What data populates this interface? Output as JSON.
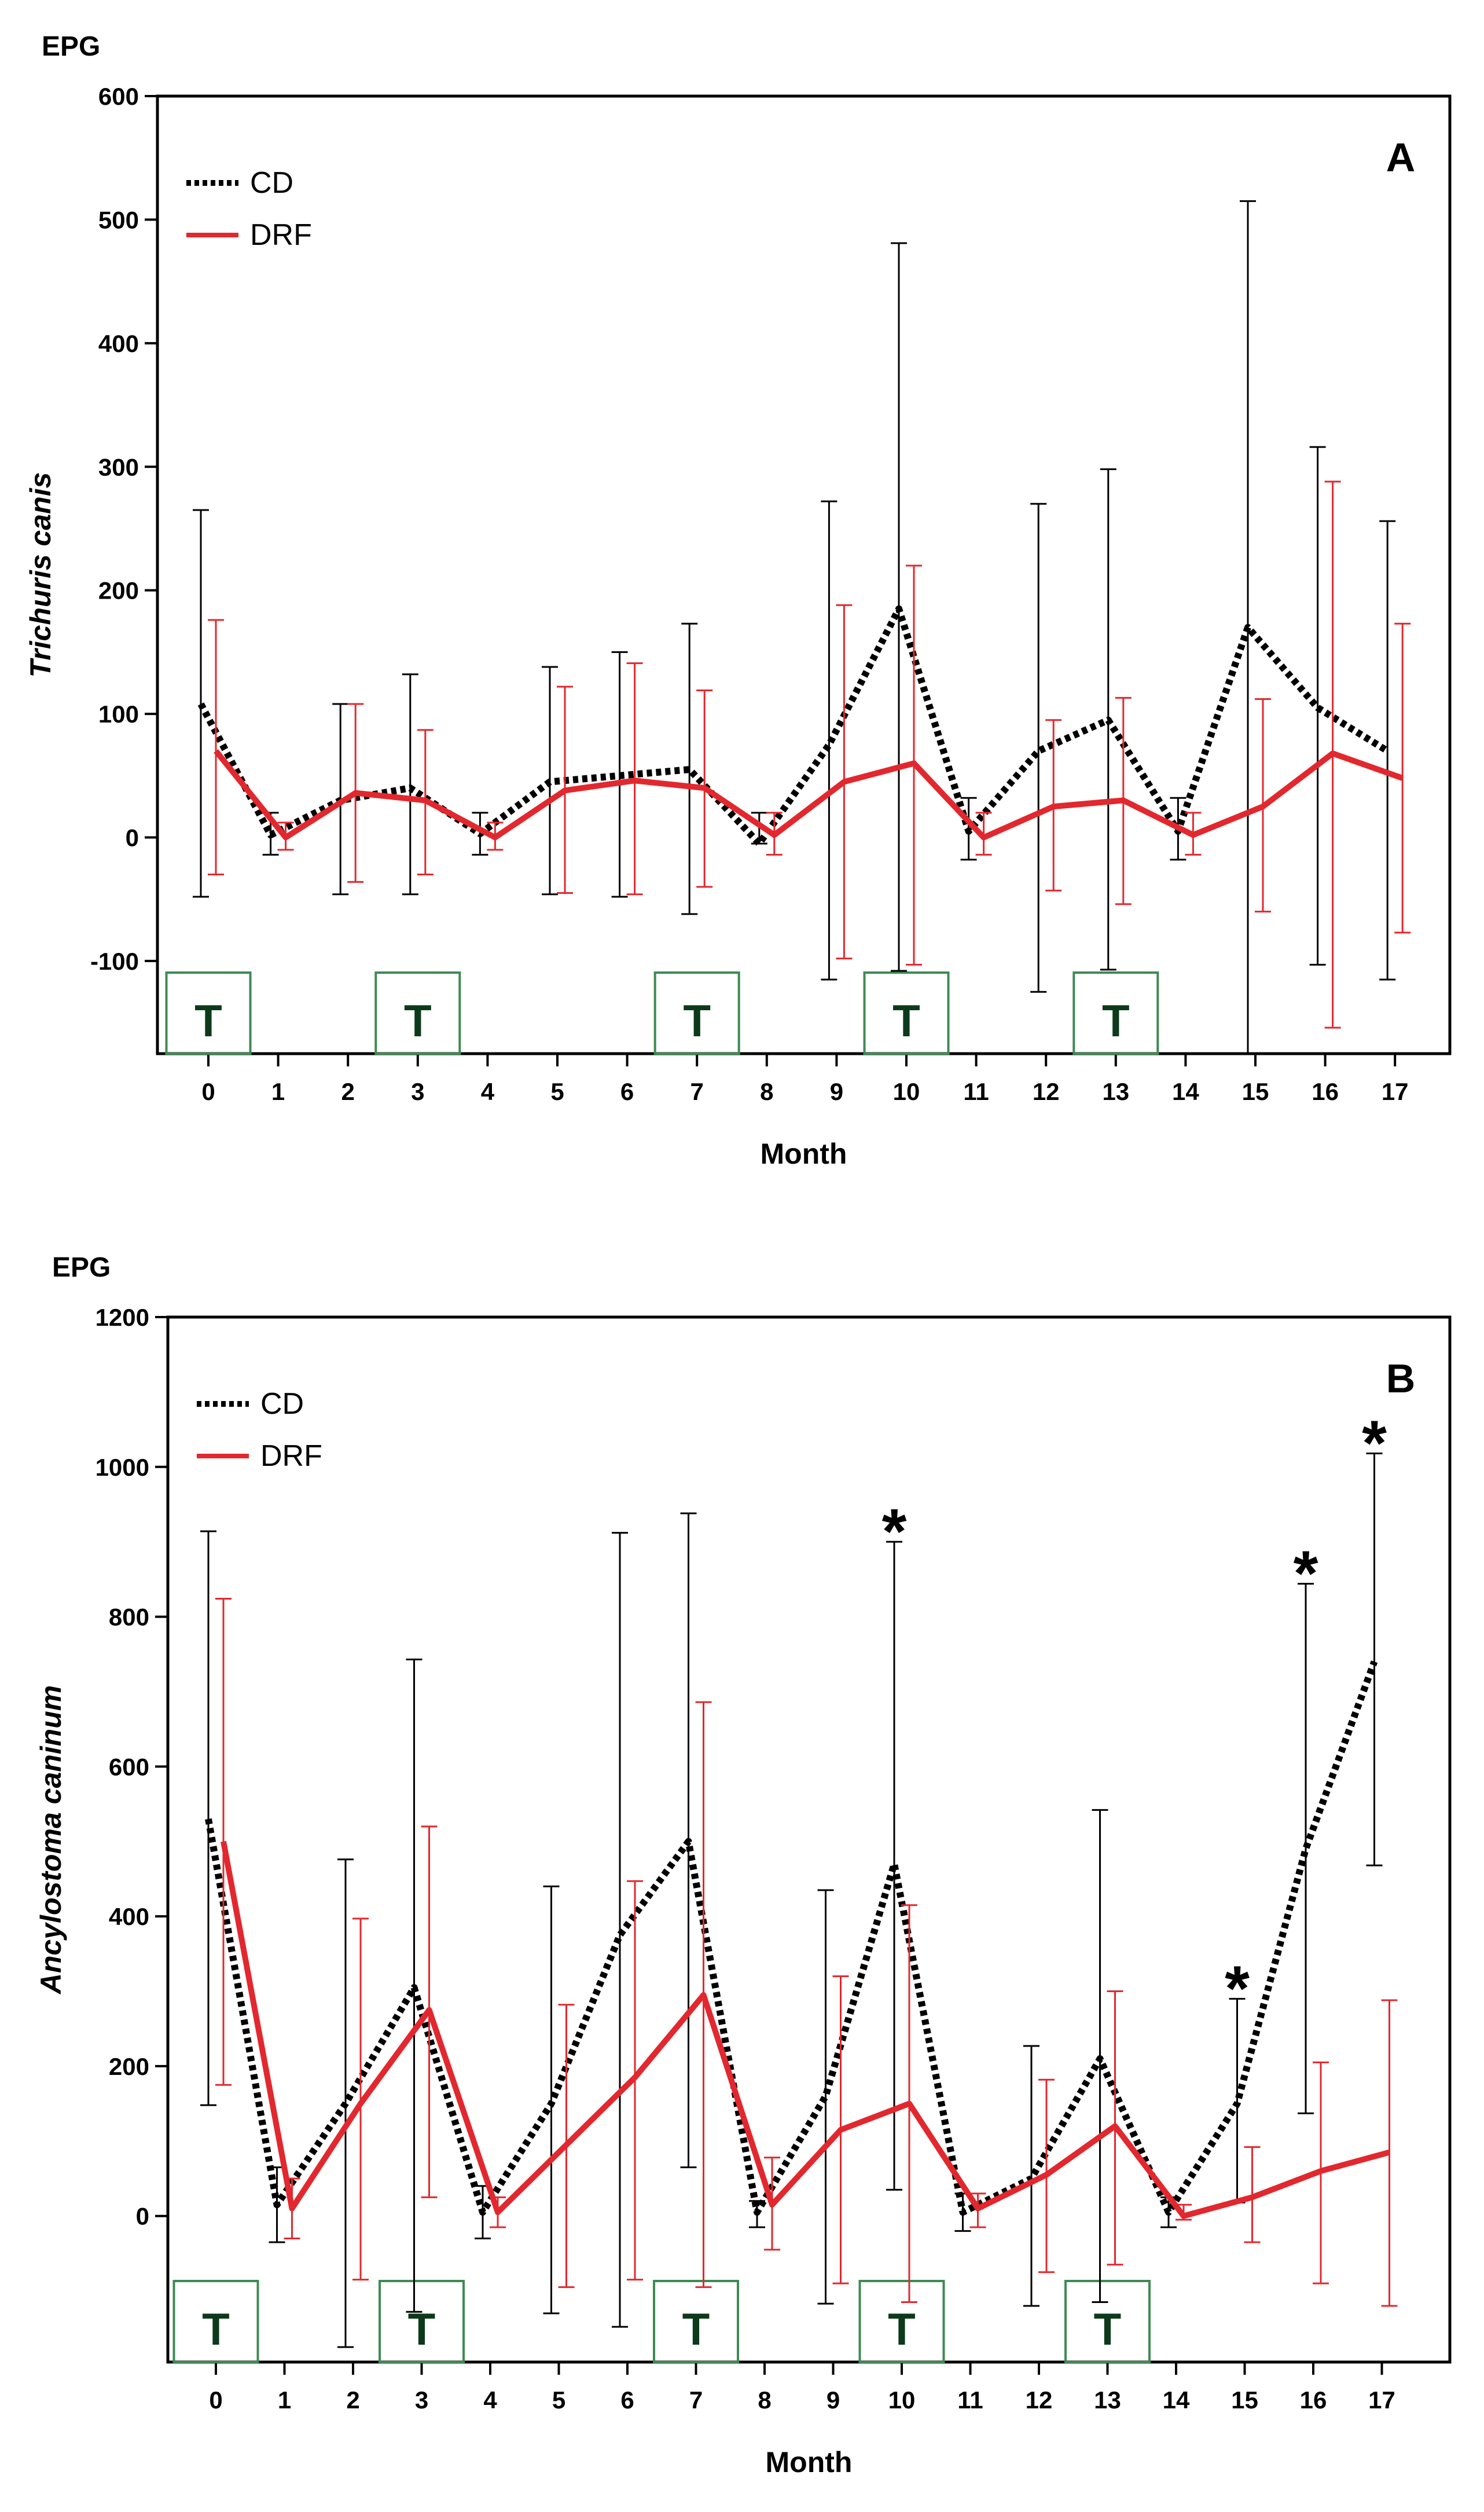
{
  "chart_data": [
    {
      "type": "line",
      "panel_label": "A",
      "ytitle": "EPG",
      "ylabel": "Trichuris canis",
      "xlabel": "Month",
      "ylim": [
        -175,
        600
      ],
      "yticks": [
        -100,
        0,
        100,
        200,
        300,
        400,
        500,
        600
      ],
      "x": [
        0,
        1,
        2,
        3,
        4,
        5,
        6,
        7,
        8,
        9,
        10,
        11,
        12,
        13,
        14,
        15,
        16,
        17
      ],
      "legend_position": "top-left",
      "series": [
        {
          "name": "CD",
          "color": "#000000",
          "style": "dotted",
          "values": [
            108,
            2,
            30,
            40,
            3,
            45,
            50,
            55,
            -5,
            75,
            185,
            5,
            70,
            95,
            5,
            170,
            105,
            70
          ],
          "err_low": [
            -48,
            -14,
            -46,
            -46,
            -14,
            -46,
            -48,
            -62,
            -5,
            -115,
            -108,
            -18,
            -125,
            -107,
            -18,
            -175,
            -103,
            -115
          ],
          "err_high": [
            265,
            20,
            108,
            132,
            20,
            138,
            150,
            173,
            20,
            272,
            481,
            32,
            270,
            298,
            32,
            515,
            316,
            256
          ]
        },
        {
          "name": "DRF",
          "color": "#e2282e",
          "style": "solid",
          "values": [
            70,
            0,
            36,
            30,
            0,
            38,
            46,
            40,
            2,
            45,
            60,
            0,
            25,
            30,
            2,
            25,
            68,
            48
          ],
          "err_low": [
            -30,
            -10,
            -36,
            -30,
            -10,
            -45,
            -46,
            -40,
            -14,
            -98,
            -103,
            -14,
            -43,
            -54,
            -14,
            -60,
            -154,
            -77
          ],
          "err_high": [
            176,
            12,
            108,
            87,
            12,
            122,
            141,
            119,
            20,
            188,
            220,
            20,
            95,
            113,
            20,
            112,
            288,
            173
          ]
        }
      ],
      "treatments": {
        "label": "T",
        "months": [
          0,
          3,
          7,
          10,
          13
        ]
      },
      "significance": {
        "symbol": "*",
        "months": []
      }
    },
    {
      "type": "line",
      "panel_label": "B",
      "ytitle": "EPG",
      "ylabel": "Ancylostoma caninum",
      "xlabel": "Month",
      "ylim": [
        -195,
        1200
      ],
      "yticks": [
        0,
        200,
        400,
        600,
        800,
        1000,
        1200
      ],
      "x": [
        0,
        1,
        2,
        3,
        4,
        5,
        6,
        7,
        8,
        9,
        10,
        11,
        12,
        13,
        14,
        15,
        16,
        17
      ],
      "legend_position": "top-left",
      "series": [
        {
          "name": "CD",
          "color": "#000000",
          "style": "dotted",
          "values": [
            530,
            15,
            150,
            305,
            5,
            150,
            375,
            500,
            5,
            160,
            470,
            5,
            50,
            210,
            5,
            150,
            490,
            740
          ],
          "err_low": [
            148,
            -35,
            -175,
            -128,
            -30,
            -130,
            -148,
            65,
            -15,
            -117,
            35,
            -20,
            -120,
            -115,
            -15,
            18,
            137,
            468
          ],
          "err_high": [
            914,
            65,
            476,
            743,
            40,
            440,
            912,
            938,
            20,
            435,
            900,
            30,
            227,
            542,
            25,
            290,
            844,
            1018
          ]
        },
        {
          "name": "DRF",
          "color": "#e2282e",
          "style": "solid",
          "values": [
            500,
            10,
            150,
            275,
            5,
            95,
            185,
            295,
            15,
            115,
            150,
            10,
            55,
            120,
            0,
            25,
            60,
            85
          ],
          "err_low": [
            175,
            -30,
            -85,
            25,
            -15,
            -95,
            -85,
            -95,
            -45,
            -90,
            -115,
            -15,
            -75,
            -65,
            -5,
            -35,
            -90,
            -120
          ],
          "err_high": [
            824,
            50,
            397,
            520,
            25,
            282,
            447,
            686,
            78,
            320,
            415,
            30,
            182,
            300,
            15,
            92,
            205,
            288
          ]
        }
      ],
      "treatments": {
        "label": "T",
        "months": [
          0,
          3,
          7,
          10,
          13
        ]
      },
      "significance": {
        "symbol": "*",
        "months": [
          10,
          15,
          16,
          17
        ]
      }
    }
  ]
}
